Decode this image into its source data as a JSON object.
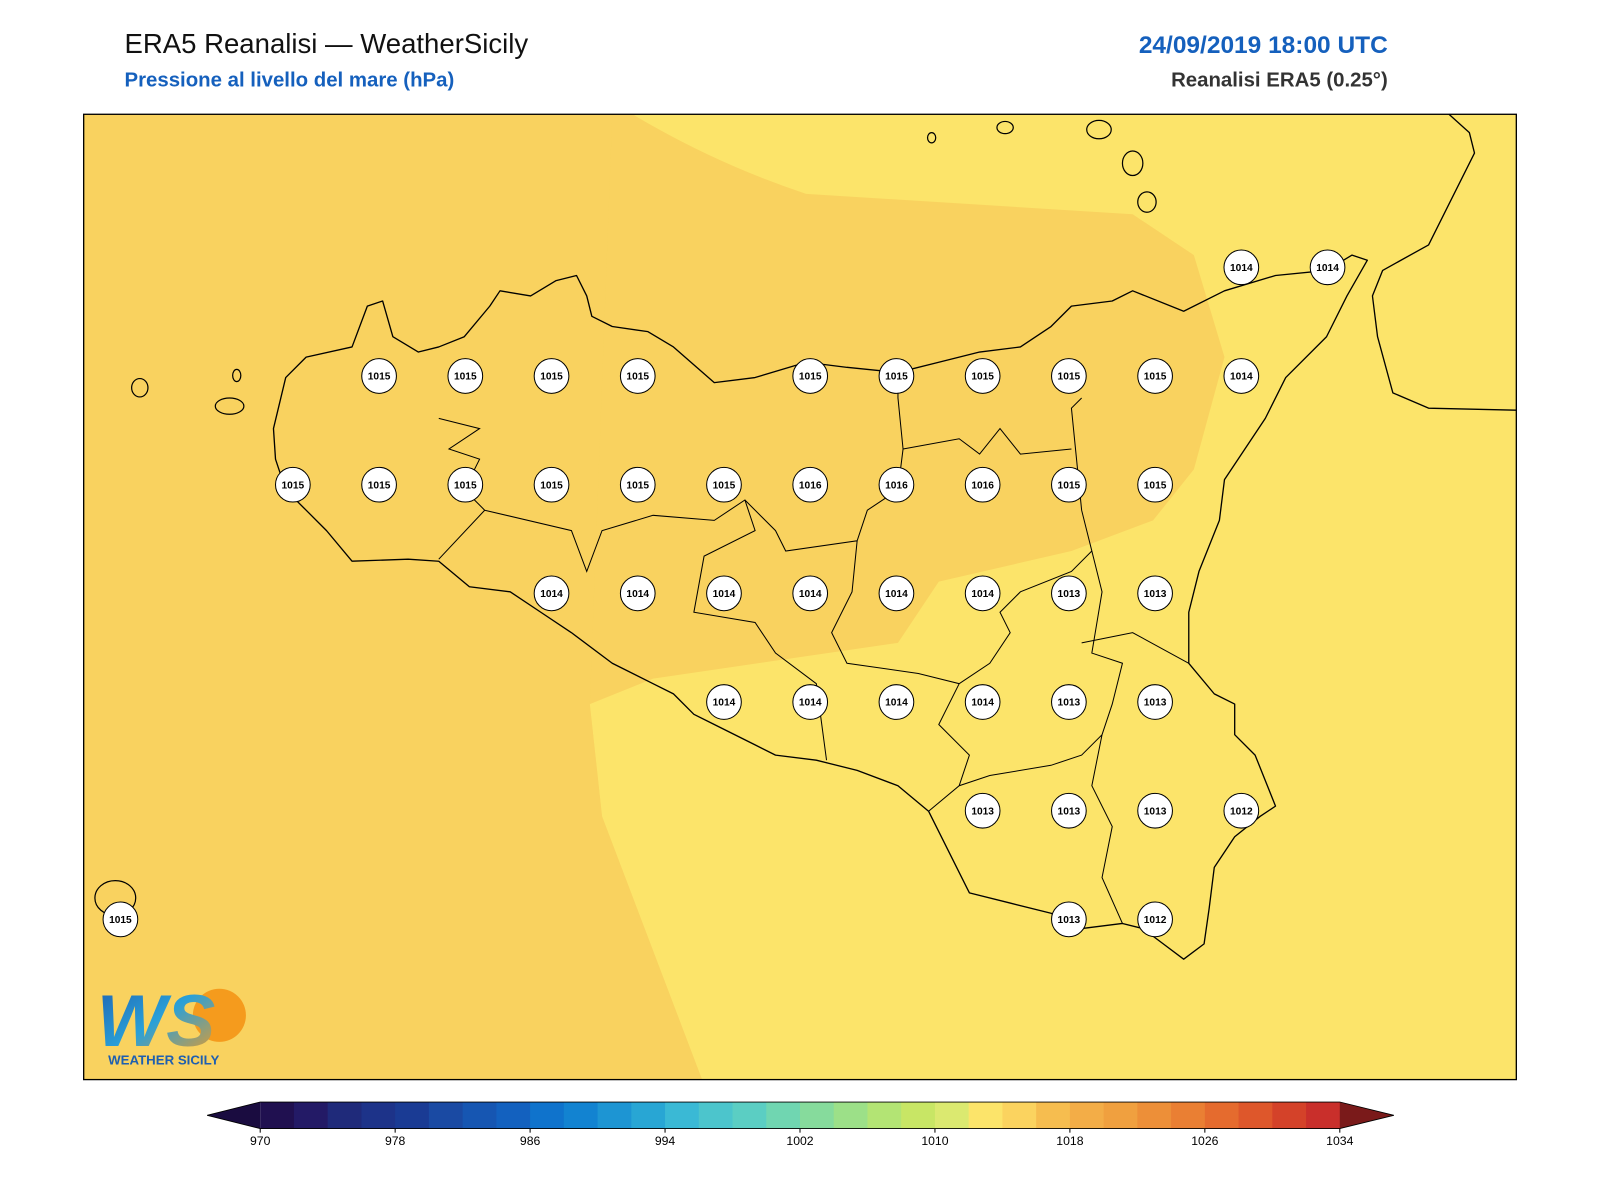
{
  "header": {
    "title": "ERA5 Reanalisi — WeatherSicily",
    "subtitle": "Pressione al livello del mare (hPa)",
    "datetime": "24/09/2019 18:00 UTC",
    "source": "Reanalisi ERA5 (0.25°)"
  },
  "stations": {
    "rows": [
      [
        null,
        null,
        null,
        null,
        null,
        null,
        null,
        null,
        null,
        null,
        null,
        null,
        null,
        1014,
        1014
      ],
      [
        null,
        null,
        null,
        1015,
        1015,
        1015,
        1015,
        null,
        1015,
        1015,
        1015,
        1015,
        1015,
        1014,
        null
      ],
      [
        null,
        null,
        1015,
        1015,
        1015,
        1015,
        1015,
        1015,
        1016,
        1016,
        1016,
        1015,
        1015,
        null,
        null
      ],
      [
        null,
        null,
        null,
        null,
        null,
        1014,
        1014,
        1014,
        1014,
        1014,
        1014,
        1013,
        1013,
        null,
        null
      ],
      [
        null,
        null,
        null,
        null,
        null,
        null,
        null,
        1014,
        1014,
        1014,
        1014,
        1013,
        1013,
        null,
        null
      ],
      [
        null,
        null,
        null,
        null,
        null,
        null,
        null,
        null,
        null,
        null,
        1013,
        1013,
        1013,
        1012,
        null
      ],
      [
        1015,
        null,
        null,
        null,
        null,
        null,
        null,
        null,
        null,
        null,
        null,
        1013,
        1012,
        null,
        null
      ]
    ]
  },
  "colorbar": {
    "ticks": [
      970,
      978,
      986,
      994,
      1002,
      1010,
      1018,
      1026,
      1034
    ],
    "colors": [
      "#201050",
      "#231a66",
      "#1f2a7a",
      "#1d3389",
      "#1a3b94",
      "#1a4aa3",
      "#1656b2",
      "#1361bf",
      "#0f73cc",
      "#1283d1",
      "#1d95d3",
      "#28a6d4",
      "#3ab9d5",
      "#4cc5cc",
      "#5bcec3",
      "#70d6b1",
      "#86db9c",
      "#9ce088",
      "#b3e474",
      "#c8e665",
      "#dbe970",
      "#fce46a",
      "#fbd35f",
      "#f6bd4f",
      "#f3ad47",
      "#f0a03f",
      "#ed8f38",
      "#ea7f33",
      "#e56b2e",
      "#de572b",
      "#d44229",
      "#c92f2b"
    ],
    "under_color": "#1a0c40",
    "over_color": "#7a1a1a"
  },
  "logo": {
    "mark": "WS",
    "text": "WEATHER SICILY"
  }
}
